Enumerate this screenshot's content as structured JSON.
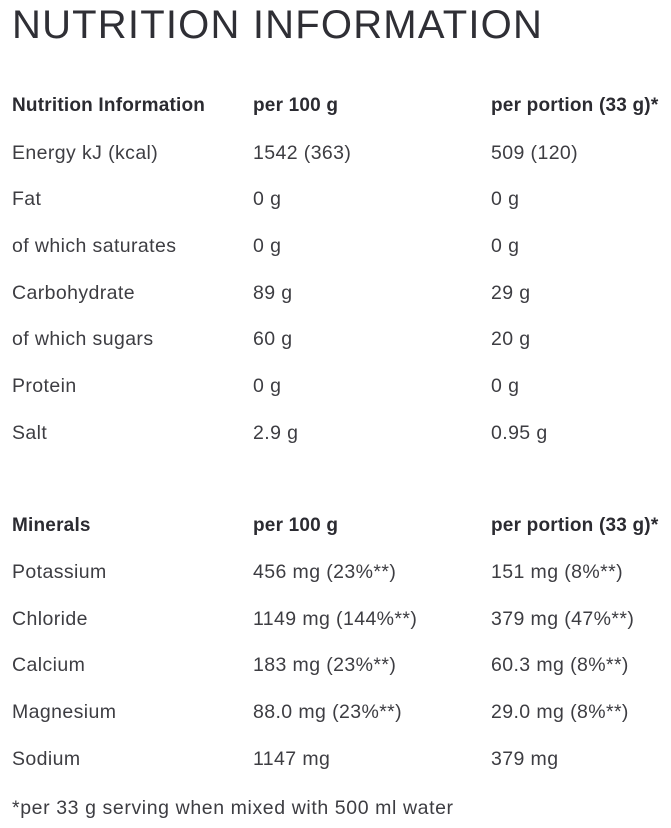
{
  "page_title": "NUTRITION INFORMATION",
  "colors": {
    "background": "#ffffff",
    "heading_text": "#2b2b31",
    "body_text": "#3d3d42"
  },
  "nutrition_table": {
    "headers": [
      "Nutrition Information",
      "per 100 g",
      "per portion (33 g)*"
    ],
    "rows": [
      {
        "label": "Energy kJ (kcal)",
        "per_100g": "1542 (363)",
        "per_portion": "509 (120)"
      },
      {
        "label": "Fat",
        "per_100g": "0 g",
        "per_portion": "0 g"
      },
      {
        "label": "of which saturates",
        "per_100g": "0 g",
        "per_portion": "0 g"
      },
      {
        "label": "Carbohydrate",
        "per_100g": "89 g",
        "per_portion": "29 g"
      },
      {
        "label": "of which sugars",
        "per_100g": "60 g",
        "per_portion": "20 g"
      },
      {
        "label": "Protein",
        "per_100g": "0 g",
        "per_portion": "0 g"
      },
      {
        "label": "Salt",
        "per_100g": "2.9 g",
        "per_portion": "0.95 g"
      }
    ]
  },
  "minerals_table": {
    "headers": [
      "Minerals",
      "per 100 g",
      "per portion (33 g)*"
    ],
    "rows": [
      {
        "label": "Potassium",
        "per_100g": "456 mg (23%**)",
        "per_portion": "151 mg (8%**)"
      },
      {
        "label": "Chloride",
        "per_100g": "1149 mg (144%**)",
        "per_portion": "379 mg (47%**)"
      },
      {
        "label": "Calcium",
        "per_100g": "183 mg (23%**)",
        "per_portion": "60.3 mg (8%**)"
      },
      {
        "label": "Magnesium",
        "per_100g": "88.0 mg (23%**)",
        "per_portion": "29.0 mg (8%**)"
      },
      {
        "label": "Sodium",
        "per_100g": "1147 mg",
        "per_portion": "379 mg"
      }
    ]
  },
  "footnote": "*per 33 g serving when mixed with 500 ml water"
}
